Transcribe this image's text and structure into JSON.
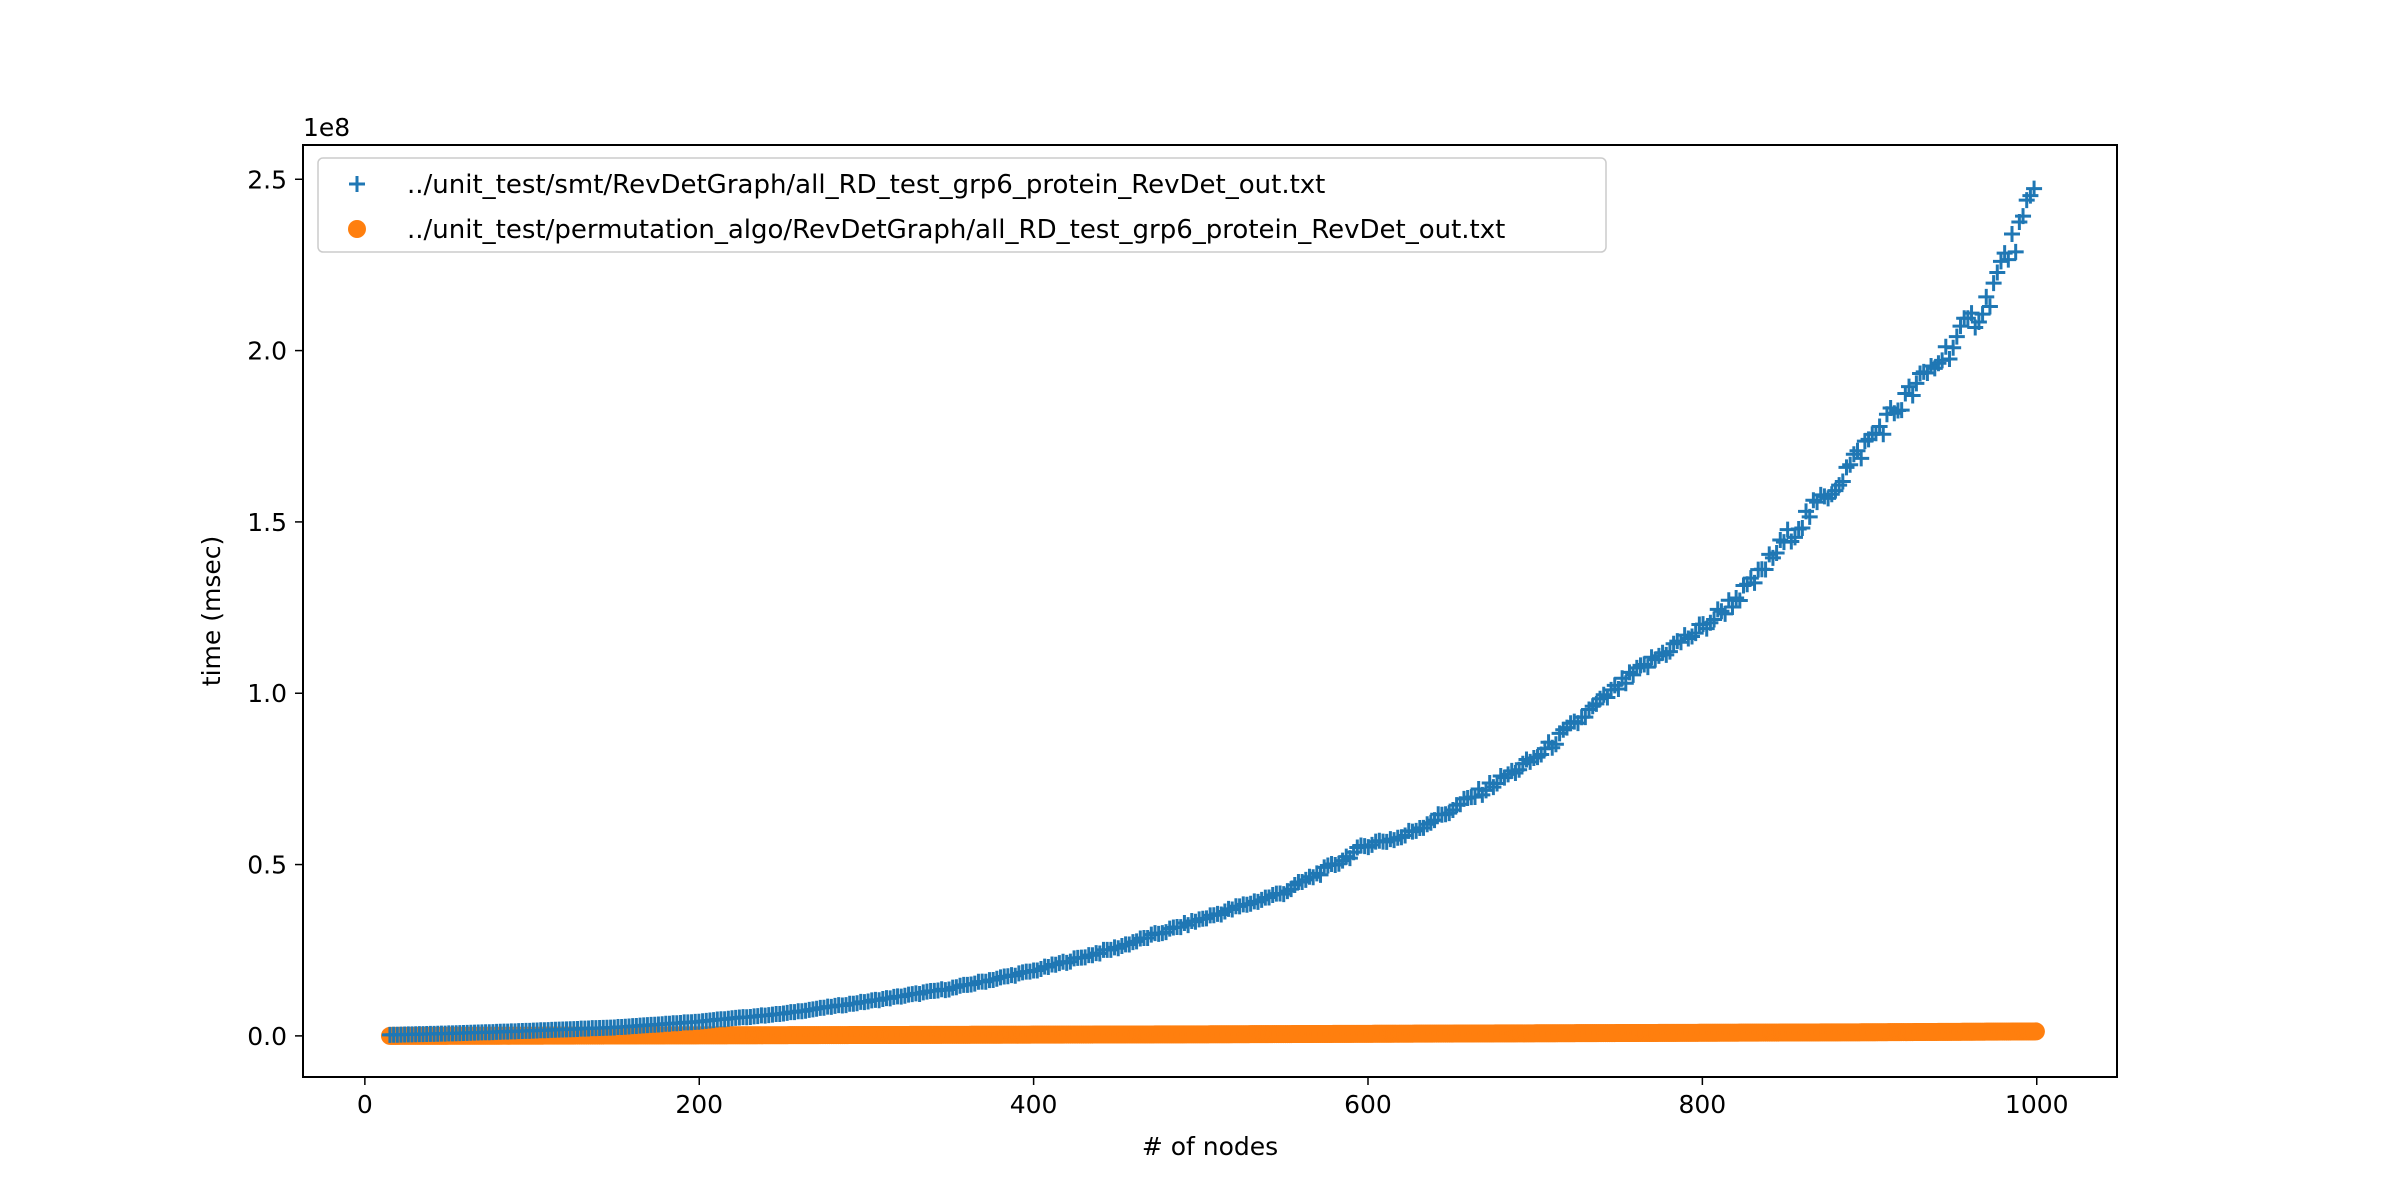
{
  "chart_data": {
    "type": "scatter",
    "xlabel": "# of nodes",
    "ylabel": "time (msec)",
    "y_offset_label": "1e8",
    "xlim": [
      -37,
      1048
    ],
    "ylim": [
      -12000000,
      260000000
    ],
    "xticks": [
      0,
      200,
      400,
      600,
      800,
      1000
    ],
    "xtick_labels": [
      "0",
      "200",
      "400",
      "600",
      "800",
      "1000"
    ],
    "yticks": [
      0,
      50000000,
      100000000,
      150000000,
      200000000,
      250000000
    ],
    "ytick_labels": [
      "0.0",
      "0.5",
      "1.0",
      "1.5",
      "2.0",
      "2.5"
    ],
    "grid": false,
    "legend_position": "top-left",
    "series": [
      {
        "name": "../unit_test/smt/RevDetGraph/all_RD_test_grp6_protein_RevDet_out.txt",
        "marker": "plus",
        "color": "#1f77b4",
        "x": [
          15,
          50,
          100,
          150,
          200,
          250,
          300,
          350,
          400,
          450,
          500,
          550,
          580,
          600,
          620,
          650,
          700,
          750,
          780,
          800,
          830,
          850,
          880,
          900,
          920,
          950,
          970,
          980,
          990,
          1000
        ],
        "y": [
          300000,
          700000,
          1500000,
          2500000,
          4200000,
          6500000,
          10000000,
          13800000,
          19000000,
          25800000,
          34000000,
          42000000,
          50000000,
          56000000,
          58000000,
          66000000,
          81000000,
          102000000,
          113000000,
          119000000,
          132000000,
          145000000,
          161000000,
          174000000,
          185000000,
          202000000,
          214000000,
          226000000,
          235000000,
          247000000
        ]
      },
      {
        "name": "../unit_test/permutation_algo/RevDetGraph/all_RD_test_grp6_protein_RevDet_out.txt",
        "marker": "circle",
        "color": "#ff7f0e",
        "x": [
          15,
          100,
          200,
          300,
          400,
          500,
          600,
          700,
          800,
          900,
          1000
        ],
        "y": [
          0,
          50000,
          150000,
          250000,
          350000,
          450000,
          600000,
          750000,
          900000,
          1050000,
          1300000
        ]
      }
    ]
  }
}
